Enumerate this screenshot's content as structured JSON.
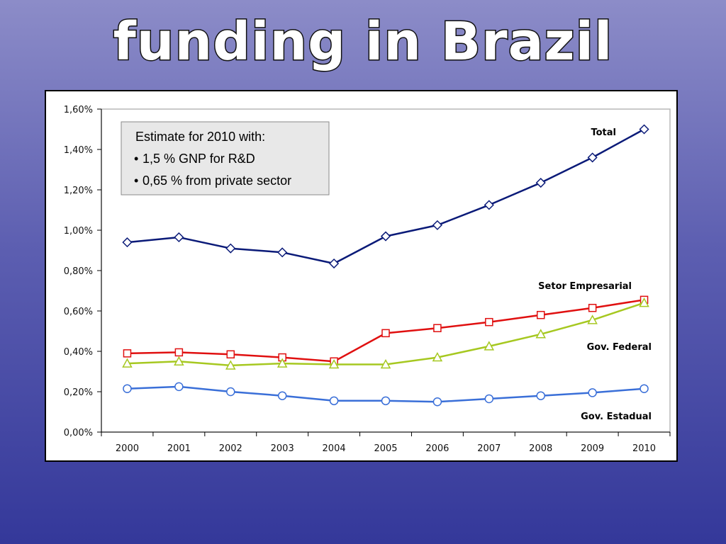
{
  "slide": {
    "title": "funding in Brazil"
  },
  "note": {
    "heading": "Estimate for 2010 with:",
    "bullets": [
      "1,5 % GNP for R&D",
      "0,65 % from private sector"
    ]
  },
  "chart_data": {
    "type": "line",
    "title": "",
    "xlabel": "",
    "ylabel": "",
    "categories": [
      "2000",
      "2001",
      "2002",
      "2003",
      "2004",
      "2005",
      "2006",
      "2007",
      "2008",
      "2009",
      "2010"
    ],
    "ylim": [
      0,
      1.6
    ],
    "yticks": [
      0,
      0.2,
      0.4,
      0.6,
      0.8,
      1.0,
      1.2,
      1.4,
      1.6
    ],
    "ytick_labels": [
      "0,00%",
      "0,20%",
      "0,40%",
      "0,60%",
      "0,80%",
      "1,00%",
      "1,20%",
      "1,40%",
      "1,60%"
    ],
    "value_unit": "%",
    "grid": false,
    "legend": "none",
    "series": [
      {
        "name": "Total",
        "color": "#0a1a78",
        "marker": "diamond",
        "values": [
          0.94,
          0.965,
          0.91,
          0.89,
          0.835,
          0.97,
          1.025,
          1.125,
          1.235,
          1.36,
          1.5
        ]
      },
      {
        "name": "Setor Empresarial",
        "color": "#e01010",
        "marker": "square",
        "values": [
          0.39,
          0.395,
          0.385,
          0.37,
          0.35,
          0.49,
          0.515,
          0.545,
          0.58,
          0.615,
          0.655
        ]
      },
      {
        "name": "Gov. Federal",
        "color": "#a6c820",
        "marker": "triangle",
        "values": [
          0.34,
          0.35,
          0.33,
          0.34,
          0.335,
          0.335,
          0.37,
          0.425,
          0.485,
          0.555,
          0.64
        ]
      },
      {
        "name": "Gov. Estadual",
        "color": "#3a6fd8",
        "marker": "circle",
        "values": [
          0.215,
          0.225,
          0.2,
          0.18,
          0.155,
          0.155,
          0.15,
          0.165,
          0.18,
          0.195,
          0.215
        ]
      }
    ]
  }
}
